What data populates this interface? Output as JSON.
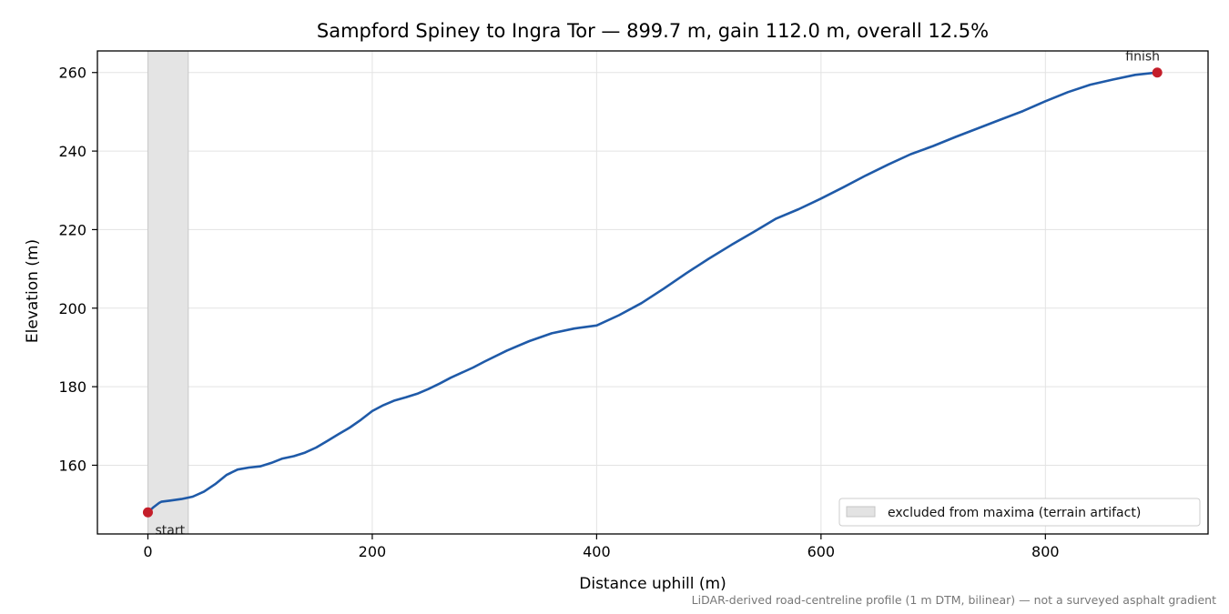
{
  "chart_data": {
    "type": "line",
    "title": "Sampford Spiney to Ingra Tor — 899.7 m, gain 112.0 m, overall 12.5%",
    "xlabel": "Distance uphill (m)",
    "ylabel": "Elevation (m)",
    "xlim": [
      -45,
      945
    ],
    "ylim": [
      142.5,
      265.5
    ],
    "xticks": [
      0,
      200,
      400,
      600,
      800
    ],
    "yticks": [
      160,
      180,
      200,
      220,
      240,
      260
    ],
    "grid": true,
    "series": [
      {
        "color": "#1f5aa8",
        "x": [
          0,
          5,
          10,
          12,
          20,
          30,
          40,
          50,
          60,
          70,
          80,
          90,
          100,
          110,
          120,
          130,
          140,
          150,
          160,
          170,
          180,
          190,
          200,
          210,
          220,
          230,
          240,
          250,
          260,
          270,
          280,
          290,
          300,
          320,
          340,
          360,
          380,
          400,
          420,
          440,
          460,
          480,
          500,
          520,
          540,
          560,
          580,
          600,
          620,
          640,
          660,
          680,
          700,
          720,
          740,
          760,
          780,
          800,
          820,
          840,
          860,
          880,
          899.7
        ],
        "y": [
          148.0,
          149.3,
          150.4,
          150.7,
          151.0,
          151.4,
          152.0,
          153.3,
          155.2,
          157.5,
          158.9,
          159.4,
          159.7,
          160.6,
          161.7,
          162.3,
          163.2,
          164.5,
          166.2,
          167.9,
          169.6,
          171.6,
          173.8,
          175.3,
          176.5,
          177.3,
          178.2,
          179.4,
          180.8,
          182.3,
          183.6,
          184.9,
          186.4,
          189.2,
          191.6,
          193.6,
          194.8,
          195.6,
          198.2,
          201.3,
          205.0,
          208.9,
          212.6,
          216.1,
          219.4,
          222.8,
          225.2,
          227.9,
          230.8,
          233.8,
          236.6,
          239.2,
          241.3,
          243.6,
          245.8,
          248.0,
          250.2,
          252.7,
          255.0,
          256.9,
          258.2,
          259.4,
          260.0
        ]
      }
    ],
    "markers": [
      {
        "x": 0,
        "y": 148.0,
        "label": "start",
        "color": "#c41e2a"
      },
      {
        "x": 899.7,
        "y": 260.0,
        "label": "finish",
        "color": "#c41e2a"
      }
    ],
    "shaded_region": {
      "x0": 0,
      "x1": 36,
      "color": "#d0d0d0",
      "label": "excluded from maxima (terrain artifact)"
    },
    "legend_position": "lower-right",
    "footnote": "LiDAR-derived road-centreline profile (1 m DTM, bilinear) — not a surveyed asphalt gradient"
  }
}
